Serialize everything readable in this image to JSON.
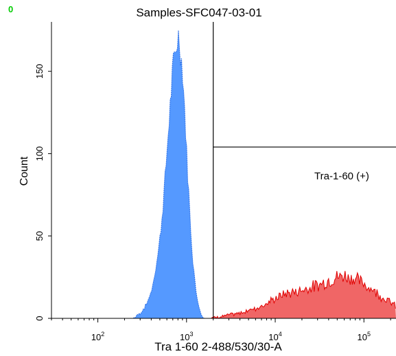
{
  "corner_marker": "0",
  "chart_data": {
    "type": "area",
    "title": "Samples-SFC047-03-01",
    "xlabel": "Tra 1-60 2-488/530/30-A",
    "ylabel": "Count",
    "x_scale": "log",
    "xlim": [
      30,
      230000
    ],
    "ylim": [
      0,
      180
    ],
    "x_ticks": [
      {
        "value": 100,
        "base": "10",
        "exp": "2"
      },
      {
        "value": 1000,
        "base": "10",
        "exp": "3"
      },
      {
        "value": 10000,
        "base": "10",
        "exp": "4"
      },
      {
        "value": 100000,
        "base": "10",
        "exp": "5"
      }
    ],
    "y_ticks": [
      {
        "value": 0,
        "label": "0"
      },
      {
        "value": 50,
        "label": "50"
      },
      {
        "value": 100,
        "label": "100"
      },
      {
        "value": 150,
        "label": "150"
      }
    ],
    "series": [
      {
        "color": "#5599ff",
        "edge_color": "#2a6ee6",
        "x": [
          250,
          300,
          350,
          400,
          450,
          500,
          550,
          600,
          650,
          700,
          750,
          800,
          850,
          900,
          950,
          1000,
          1050,
          1100,
          1200,
          1300,
          1400,
          1500,
          1600
        ],
        "y": [
          0,
          3,
          8,
          16,
          30,
          48,
          72,
          100,
          128,
          150,
          162,
          172,
          165,
          150,
          128,
          102,
          80,
          58,
          30,
          14,
          6,
          2,
          0
        ]
      },
      {
        "color": "#f06666",
        "edge_color": "#e00000",
        "x": [
          1900,
          2500,
          3000,
          4000,
          5000,
          6000,
          8000,
          10000,
          13000,
          17000,
          22000,
          30000,
          40000,
          50000,
          60000,
          80000,
          100000,
          130000,
          160000,
          200000,
          230000
        ],
        "y": [
          0,
          1,
          2,
          3,
          5,
          6,
          9,
          12,
          15,
          16,
          18,
          20,
          23,
          25,
          26,
          24,
          21,
          17,
          13,
          10,
          7
        ]
      }
    ],
    "gates": [
      {
        "name": "Tra-1-60 (+)",
        "x_min": 2000,
        "x_max": 230000,
        "y_level": 104
      }
    ]
  }
}
